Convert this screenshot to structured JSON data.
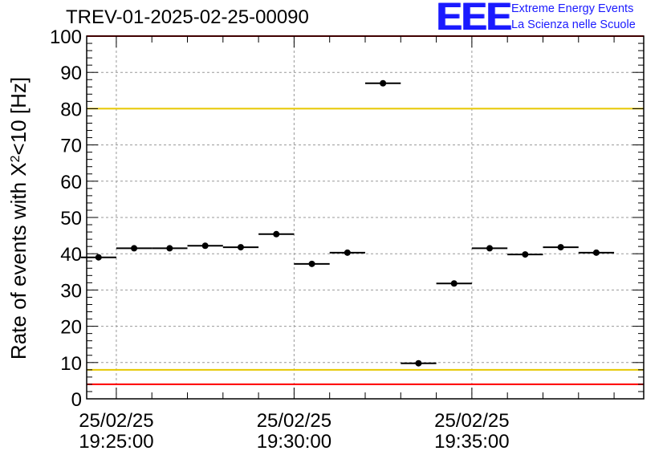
{
  "header": {
    "title": "TREV-01-2025-02-25-00090",
    "logo_mark": "EEE",
    "logo_line1": "Extreme Energy Events",
    "logo_line2": "La Scienza nelle Scuole"
  },
  "chart_data": {
    "type": "scatter",
    "title": "TREV-01-2025-02-25-00090",
    "xlabel": "",
    "ylabel": "Rate of events with X²<10 [Hz]",
    "ylabel_parts": {
      "main": "Rate of events with X",
      "sup": "2",
      "tail": "<10 [Hz]"
    },
    "ylim": [
      0,
      100
    ],
    "yticks": [
      0,
      10,
      20,
      30,
      40,
      50,
      60,
      70,
      80,
      90,
      100
    ],
    "grid": true,
    "x_range": [
      "2025-02-25 19:24:10",
      "2025-02-25 19:39:50"
    ],
    "xticks": [
      {
        "at": "2025-02-25 19:25:00",
        "date": "25/02/25",
        "time": "19:25:00"
      },
      {
        "at": "2025-02-25 19:30:00",
        "date": "25/02/25",
        "time": "19:30:00"
      },
      {
        "at": "2025-02-25 19:35:00",
        "date": "25/02/25",
        "time": "19:35:00"
      }
    ],
    "minor_xticks": [
      "2025-02-25 19:26:00",
      "2025-02-25 19:27:00",
      "2025-02-25 19:28:00",
      "2025-02-25 19:29:00",
      "2025-02-25 19:31:00",
      "2025-02-25 19:32:00",
      "2025-02-25 19:33:00",
      "2025-02-25 19:34:00",
      "2025-02-25 19:36:00",
      "2025-02-25 19:37:00",
      "2025-02-25 19:38:00",
      "2025-02-25 19:39:00"
    ],
    "bin_width_seconds": 60,
    "series": [
      {
        "points": [
          {
            "x": "2025-02-25 19:24:30",
            "y": 39.0
          },
          {
            "x": "2025-02-25 19:25:30",
            "y": 41.5
          },
          {
            "x": "2025-02-25 19:26:30",
            "y": 41.5
          },
          {
            "x": "2025-02-25 19:27:30",
            "y": 42.2
          },
          {
            "x": "2025-02-25 19:28:30",
            "y": 41.8
          },
          {
            "x": "2025-02-25 19:29:30",
            "y": 45.4
          },
          {
            "x": "2025-02-25 19:30:30",
            "y": 37.2
          },
          {
            "x": "2025-02-25 19:31:30",
            "y": 40.3
          },
          {
            "x": "2025-02-25 19:32:30",
            "y": 87.0
          },
          {
            "x": "2025-02-25 19:33:30",
            "y": 9.8
          },
          {
            "x": "2025-02-25 19:34:30",
            "y": 31.8
          },
          {
            "x": "2025-02-25 19:35:30",
            "y": 41.5
          },
          {
            "x": "2025-02-25 19:36:30",
            "y": 39.8
          },
          {
            "x": "2025-02-25 19:37:30",
            "y": 41.8
          },
          {
            "x": "2025-02-25 19:38:30",
            "y": 40.3
          }
        ]
      }
    ],
    "reference_lines": [
      {
        "y": 100,
        "color": "#ff0000"
      },
      {
        "y": 80,
        "color": "#e6c800"
      },
      {
        "y": 8,
        "color": "#e6c800"
      },
      {
        "y": 4,
        "color": "#ff0000"
      }
    ]
  }
}
